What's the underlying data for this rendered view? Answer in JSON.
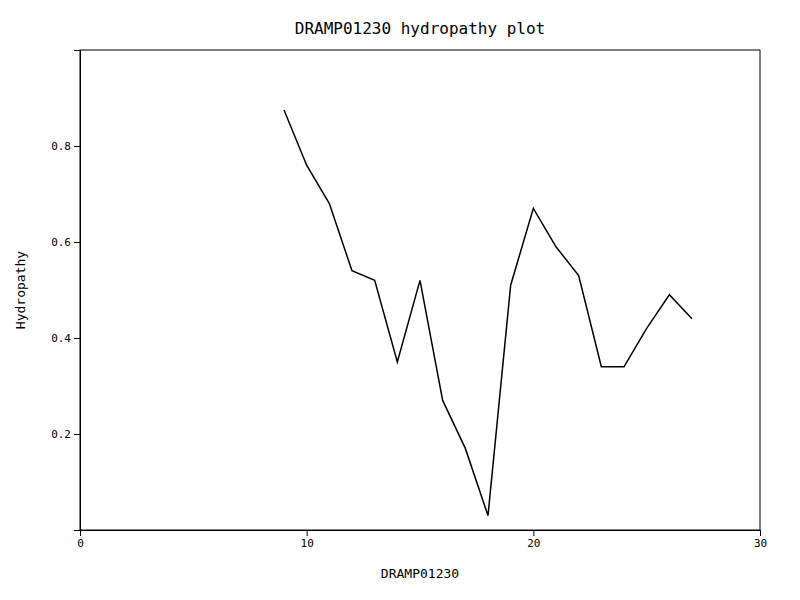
{
  "chart_data": {
    "type": "line",
    "title": "DRAMP01230 hydropathy plot",
    "xlabel": "DRAMP01230",
    "ylabel": "Hydropathy",
    "x": [
      9,
      10,
      11,
      12,
      13,
      14,
      15,
      16,
      17,
      18,
      19,
      20,
      21,
      22,
      23,
      24,
      25,
      26,
      27
    ],
    "values": [
      0.875,
      0.76,
      0.68,
      0.54,
      0.52,
      0.35,
      0.52,
      0.27,
      0.17,
      0.03,
      0.51,
      0.67,
      0.59,
      0.53,
      0.34,
      0.34,
      0.42,
      0.49,
      0.44
    ],
    "color": "black",
    "xlim": [
      0,
      30
    ],
    "ylim": [
      0,
      1.0
    ],
    "xticks": [
      0,
      10,
      20,
      30
    ],
    "yticks": [
      0.2,
      0.4,
      0.6,
      0.8
    ],
    "grid": false
  }
}
